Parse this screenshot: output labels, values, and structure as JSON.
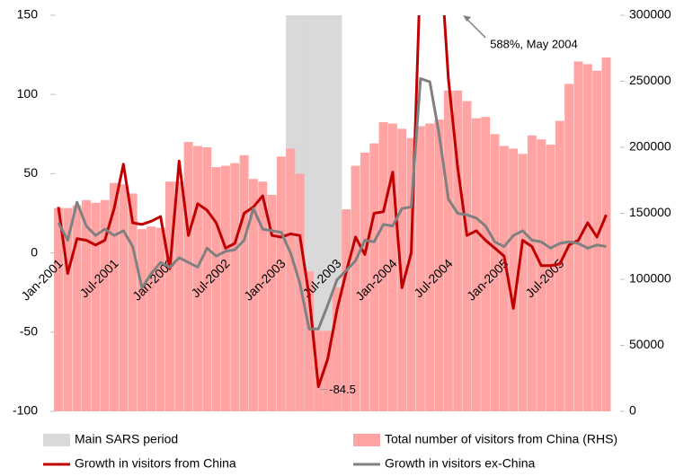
{
  "chart_data": {
    "type": "bar",
    "categories": [
      "Jan-2001",
      null,
      null,
      null,
      null,
      null,
      "Jul-2001",
      null,
      null,
      null,
      null,
      null,
      "Jan-2002",
      null,
      null,
      null,
      null,
      null,
      "Jul-2002",
      null,
      null,
      null,
      null,
      null,
      "Jan-2003",
      null,
      null,
      null,
      null,
      null,
      "Jul-2003",
      null,
      null,
      null,
      null,
      null,
      "Jan-2004",
      null,
      null,
      null,
      null,
      null,
      "Jul-2004",
      null,
      null,
      null,
      null,
      null,
      "Jan-2005",
      null,
      null,
      null,
      null,
      null,
      "Jul-2005",
      null,
      null,
      null,
      null,
      null
    ],
    "ylim": [
      -100,
      150
    ],
    "yticks": [
      -100,
      -50,
      0,
      50,
      100,
      150
    ],
    "y2lim": [
      0,
      300000
    ],
    "y2ticks": [
      0,
      50000,
      100000,
      150000,
      200000,
      250000,
      300000
    ],
    "grid": false,
    "series": [
      {
        "name": "Main SARS period",
        "type": "band",
        "color": "#d9d9d9",
        "values": [
          null,
          null,
          null,
          null,
          null,
          null,
          null,
          null,
          null,
          null,
          null,
          null,
          null,
          null,
          null,
          null,
          null,
          null,
          null,
          null,
          null,
          null,
          null,
          null,
          null,
          150,
          150,
          150,
          150,
          150,
          150,
          null,
          null,
          null,
          null,
          null,
          null,
          null,
          null,
          null,
          null,
          null,
          null,
          null,
          null,
          null,
          null,
          null,
          null,
          null,
          null,
          null,
          null,
          null,
          null,
          null,
          null,
          null,
          null,
          null
        ]
      },
      {
        "name": "Total number of visitors from China (RHS)",
        "type": "bar",
        "axis": "y2",
        "color": "#ffa3a3",
        "values": [
          154000,
          154000,
          156000,
          160000,
          158000,
          160000,
          173000,
          172000,
          165000,
          138000,
          140000,
          139000,
          174000,
          174000,
          204000,
          201000,
          200000,
          185000,
          186000,
          188000,
          194000,
          176000,
          174000,
          164000,
          193000,
          199000,
          180000,
          106000,
          61000,
          61000,
          94000,
          153000,
          186000,
          196000,
          203000,
          219000,
          218000,
          214000,
          207000,
          216000,
          218000,
          221000,
          243000,
          243000,
          235000,
          222000,
          223000,
          210000,
          201000,
          199000,
          195000,
          209000,
          206000,
          202000,
          220000,
          248000,
          265000,
          263000,
          258000,
          268000
        ]
      },
      {
        "name": "Growth in visitors from China",
        "type": "line",
        "color": "#c00000",
        "values": [
          29,
          -13,
          9,
          8,
          5,
          8,
          28,
          56,
          19,
          18,
          20,
          23,
          -10,
          58,
          11,
          31,
          27,
          19,
          3,
          6,
          25,
          29,
          36,
          11,
          10,
          12,
          11,
          -27,
          -84.5,
          -67,
          -36,
          -12,
          10,
          -1,
          25,
          26,
          51,
          -22,
          0,
          180,
          588,
          200,
          110,
          54,
          11,
          14,
          8,
          3,
          -2,
          -35,
          8,
          4,
          -8,
          -8,
          -7,
          5,
          8,
          19,
          10,
          24
        ]
      },
      {
        "name": "Growth in visitors ex-China",
        "type": "line",
        "color": "#808080",
        "values": [
          19,
          8,
          32,
          17,
          11,
          15,
          11,
          14,
          4,
          -22,
          -13,
          -6,
          -9,
          -3,
          -6,
          -9,
          3,
          -2,
          1,
          2,
          8,
          28,
          15,
          14,
          13,
          0,
          -19,
          -48,
          -48,
          -33,
          -17,
          -11,
          -5,
          8,
          7,
          18,
          17,
          28,
          29,
          110,
          108,
          75,
          34,
          25,
          24,
          22,
          17,
          7,
          4,
          11,
          14,
          8,
          7,
          3,
          6,
          7,
          6,
          3,
          5,
          4
        ]
      }
    ],
    "annotations": [
      "588%, May 2004"
    ]
  }
}
